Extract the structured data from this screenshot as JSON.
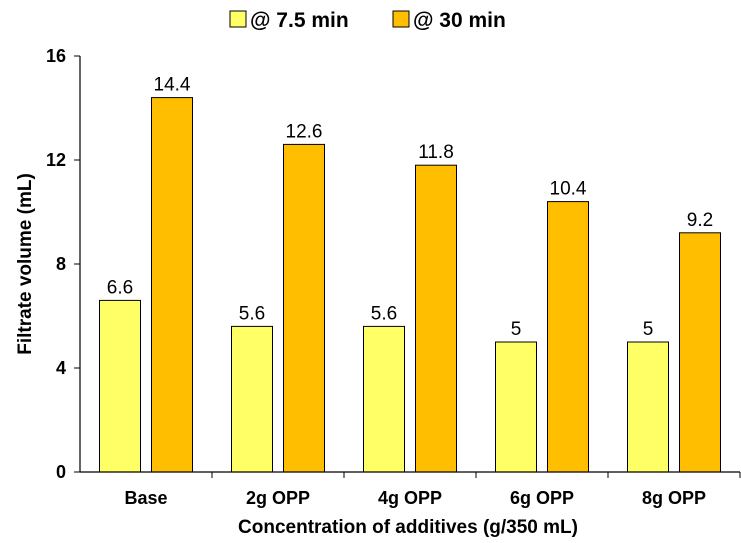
{
  "chart_data": {
    "type": "bar",
    "categories": [
      "Base",
      "2g OPP",
      "4g OPP",
      "6g OPP",
      "8g OPP"
    ],
    "series": [
      {
        "name": "@ 7.5 min",
        "values": [
          6.6,
          5.6,
          5.6,
          5,
          5
        ],
        "color": "#ffff66"
      },
      {
        "name": "@ 30 min",
        "values": [
          14.4,
          12.6,
          11.8,
          10.4,
          9.2
        ],
        "color": "#ffbf00"
      }
    ],
    "title": "",
    "xlabel": "Concentration of additives (g/350 mL)",
    "ylabel": "Filtrate volume (mL)",
    "ylim": [
      0,
      16
    ],
    "yticks": [
      0,
      4,
      8,
      12,
      16
    ],
    "grid": false,
    "legend_position": "top-center"
  }
}
